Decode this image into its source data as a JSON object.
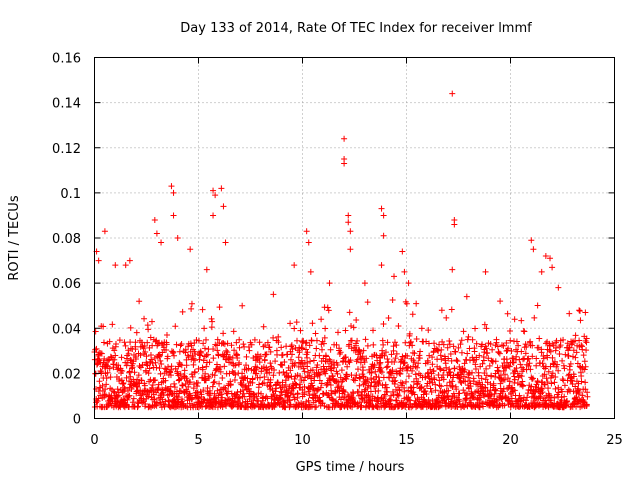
{
  "chart_data": {
    "type": "scatter",
    "title": "Day 133 of 2014, Rate Of TEC Index for receiver lmmf",
    "xlabel": "GPS time / hours",
    "ylabel": "ROTI / TECUs",
    "xlim": [
      0,
      25
    ],
    "ylim": [
      0,
      0.16
    ],
    "x_ticks": [
      0,
      5,
      10,
      15,
      20,
      25
    ],
    "x_tick_labels": [
      "0",
      "5",
      "10",
      "15",
      "20",
      "25"
    ],
    "y_ticks": [
      0,
      0.02,
      0.04,
      0.06,
      0.08,
      0.1,
      0.12,
      0.14,
      0.16
    ],
    "y_tick_labels": [
      "0",
      "0.02",
      "0.04",
      "0.06",
      "0.08",
      "0.1",
      "0.12",
      "0.14",
      "0.16"
    ],
    "grid": true,
    "marker": "+",
    "color": "#ff0000",
    "series": [
      {
        "name": "ROTI",
        "data_span_hours": [
          0,
          23.7
        ],
        "baseline_range": [
          0.005,
          0.035
        ],
        "notable_points": [
          {
            "x": 0.1,
            "y": 0.074
          },
          {
            "x": 0.2,
            "y": 0.07
          },
          {
            "x": 0.5,
            "y": 0.083
          },
          {
            "x": 1.0,
            "y": 0.068
          },
          {
            "x": 1.5,
            "y": 0.068
          },
          {
            "x": 1.7,
            "y": 0.07
          },
          {
            "x": 2.9,
            "y": 0.088
          },
          {
            "x": 3.0,
            "y": 0.082
          },
          {
            "x": 3.2,
            "y": 0.078
          },
          {
            "x": 3.7,
            "y": 0.103
          },
          {
            "x": 3.8,
            "y": 0.1
          },
          {
            "x": 3.8,
            "y": 0.09
          },
          {
            "x": 4.0,
            "y": 0.08
          },
          {
            "x": 4.6,
            "y": 0.075
          },
          {
            "x": 5.4,
            "y": 0.066
          },
          {
            "x": 5.7,
            "y": 0.101
          },
          {
            "x": 5.8,
            "y": 0.099
          },
          {
            "x": 5.7,
            "y": 0.09
          },
          {
            "x": 6.1,
            "y": 0.102
          },
          {
            "x": 6.2,
            "y": 0.094
          },
          {
            "x": 6.3,
            "y": 0.078
          },
          {
            "x": 7.1,
            "y": 0.05
          },
          {
            "x": 8.6,
            "y": 0.055
          },
          {
            "x": 9.6,
            "y": 0.068
          },
          {
            "x": 10.2,
            "y": 0.083
          },
          {
            "x": 10.3,
            "y": 0.078
          },
          {
            "x": 10.4,
            "y": 0.065
          },
          {
            "x": 11.3,
            "y": 0.06
          },
          {
            "x": 12.0,
            "y": 0.124
          },
          {
            "x": 12.0,
            "y": 0.115
          },
          {
            "x": 12.0,
            "y": 0.113
          },
          {
            "x": 12.2,
            "y": 0.09
          },
          {
            "x": 12.2,
            "y": 0.087
          },
          {
            "x": 12.3,
            "y": 0.083
          },
          {
            "x": 12.3,
            "y": 0.075
          },
          {
            "x": 13.0,
            "y": 0.06
          },
          {
            "x": 13.8,
            "y": 0.093
          },
          {
            "x": 13.9,
            "y": 0.09
          },
          {
            "x": 13.9,
            "y": 0.081
          },
          {
            "x": 13.8,
            "y": 0.068
          },
          {
            "x": 14.4,
            "y": 0.063
          },
          {
            "x": 14.8,
            "y": 0.074
          },
          {
            "x": 14.9,
            "y": 0.065
          },
          {
            "x": 15.1,
            "y": 0.06
          },
          {
            "x": 16.7,
            "y": 0.048
          },
          {
            "x": 17.2,
            "y": 0.144
          },
          {
            "x": 17.3,
            "y": 0.088
          },
          {
            "x": 17.3,
            "y": 0.086
          },
          {
            "x": 17.2,
            "y": 0.066
          },
          {
            "x": 17.9,
            "y": 0.054
          },
          {
            "x": 18.8,
            "y": 0.065
          },
          {
            "x": 19.5,
            "y": 0.052
          },
          {
            "x": 20.2,
            "y": 0.044
          },
          {
            "x": 21.0,
            "y": 0.079
          },
          {
            "x": 21.1,
            "y": 0.075
          },
          {
            "x": 21.5,
            "y": 0.065
          },
          {
            "x": 21.7,
            "y": 0.072
          },
          {
            "x": 21.9,
            "y": 0.071
          },
          {
            "x": 22.0,
            "y": 0.067
          },
          {
            "x": 22.3,
            "y": 0.058
          },
          {
            "x": 23.3,
            "y": 0.048
          },
          {
            "x": 23.6,
            "y": 0.047
          }
        ]
      }
    ]
  }
}
